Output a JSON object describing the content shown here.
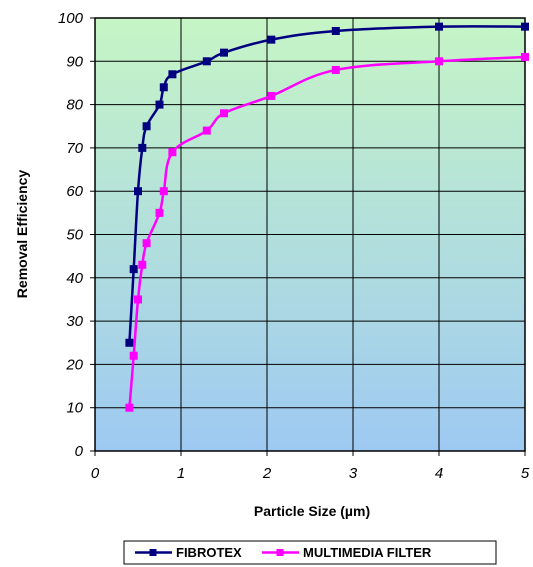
{
  "chart_data": {
    "type": "line",
    "title": "",
    "xlabel": "Particle Size (µm)",
    "ylabel": "Removal Efficiency",
    "xlim": [
      0,
      5
    ],
    "ylim": [
      0,
      100
    ],
    "xticks": [
      0,
      1,
      2,
      3,
      4,
      5
    ],
    "yticks": [
      0,
      10,
      20,
      30,
      40,
      50,
      60,
      70,
      80,
      90,
      100
    ],
    "grid": true,
    "legend_position": "bottom",
    "background_gradient": [
      "#c6f5c6",
      "#9ec9f2"
    ],
    "series": [
      {
        "name": "FIBROTEX",
        "color": "#000080",
        "marker": "square",
        "x": [
          0.4,
          0.45,
          0.5,
          0.55,
          0.6,
          0.75,
          0.8,
          0.9,
          1.3,
          1.5,
          2.05,
          2.8,
          4.0,
          5.0
        ],
        "y": [
          25,
          42,
          60,
          70,
          75,
          80,
          84,
          87,
          90,
          92,
          95,
          97,
          98,
          98
        ]
      },
      {
        "name": "MULTIMEDIA FILTER",
        "color": "#ff00ff",
        "marker": "square",
        "x": [
          0.4,
          0.45,
          0.5,
          0.55,
          0.6,
          0.75,
          0.8,
          0.9,
          1.3,
          1.5,
          2.05,
          2.8,
          4.0,
          5.0
        ],
        "y": [
          10,
          22,
          35,
          43,
          48,
          55,
          60,
          69,
          74,
          78,
          82,
          88,
          90,
          91
        ]
      }
    ]
  }
}
